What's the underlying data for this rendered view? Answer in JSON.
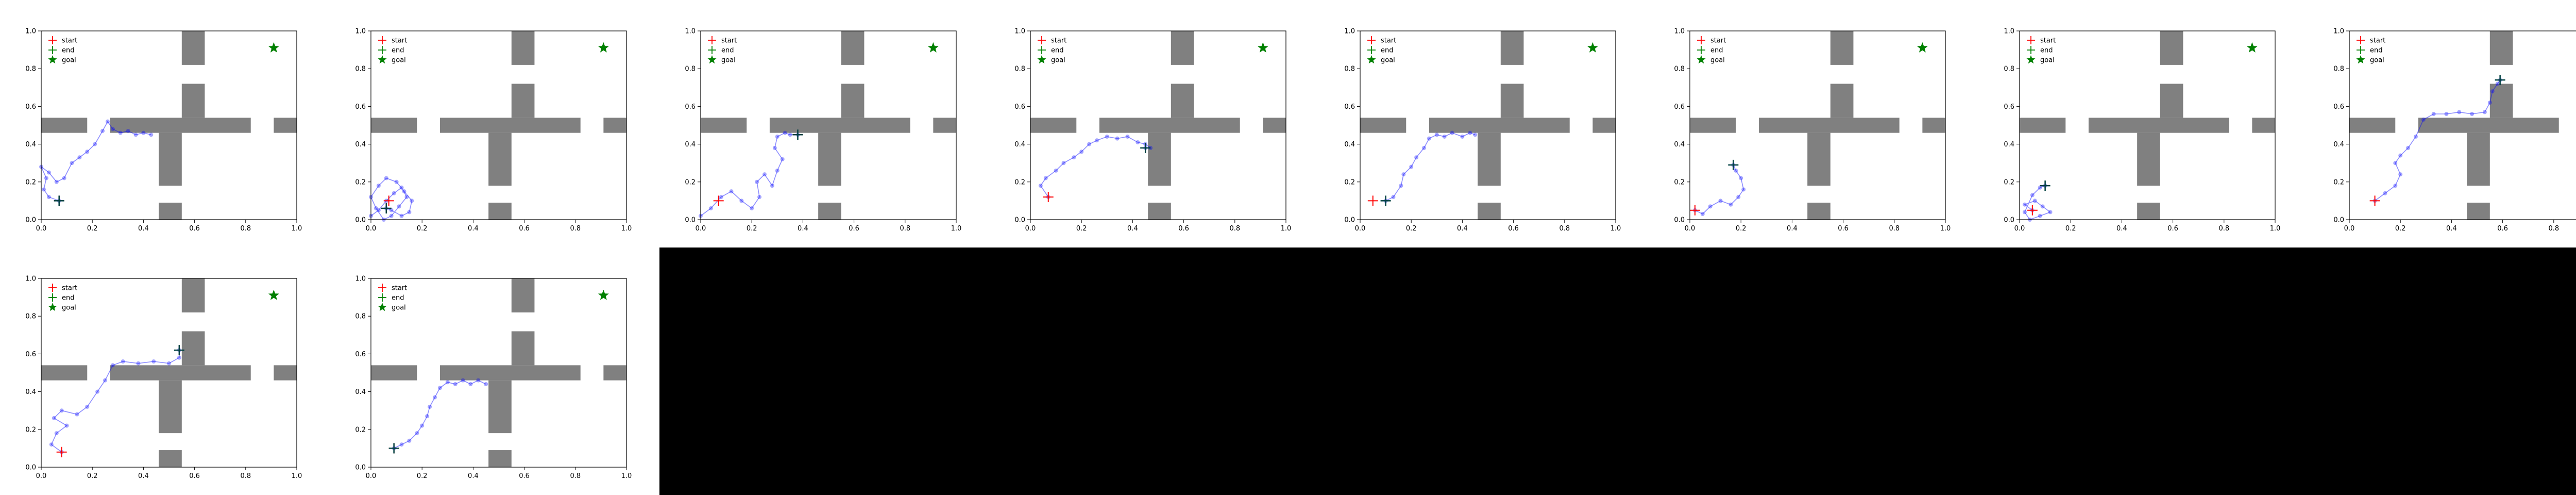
{
  "chart_data": {
    "type": "scatter",
    "description_free": true,
    "xlim": [
      0,
      1
    ],
    "ylim": [
      0,
      1
    ],
    "xticks": [
      "0.0",
      "0.2",
      "0.4",
      "0.6",
      "0.8",
      "1.0"
    ],
    "yticks": [
      "0.0",
      "0.2",
      "0.4",
      "0.6",
      "0.8",
      "1.0"
    ],
    "grid": false,
    "legend_position": "top-left",
    "legend": [
      {
        "key": "start",
        "label": "start",
        "marker": "plus",
        "color": "#ff0000"
      },
      {
        "key": "end",
        "label": "end",
        "marker": "plus",
        "color": "#008000"
      },
      {
        "key": "goal",
        "label": "goal",
        "marker": "star",
        "color": "#008000"
      }
    ],
    "colors": {
      "walls": "#808080",
      "trajectory": "#0000ff",
      "end_marker": "#004040",
      "start_marker": "#ff0000",
      "goal_marker": "#008000"
    },
    "walls": [
      {
        "x0": 0.0,
        "x1": 0.18,
        "y0": 0.46,
        "y1": 0.54
      },
      {
        "x0": 0.27,
        "x1": 0.82,
        "y0": 0.46,
        "y1": 0.54
      },
      {
        "x0": 0.91,
        "x1": 1.0,
        "y0": 0.46,
        "y1": 0.54
      },
      {
        "x0": 0.55,
        "x1": 0.64,
        "y0": 0.82,
        "y1": 1.0
      },
      {
        "x0": 0.55,
        "x1": 0.64,
        "y0": 0.54,
        "y1": 0.72
      },
      {
        "x0": 0.46,
        "x1": 0.55,
        "y0": 0.18,
        "y1": 0.46
      },
      {
        "x0": 0.46,
        "x1": 0.55,
        "y0": 0.0,
        "y1": 0.09
      }
    ],
    "goal": [
      0.91,
      0.91
    ],
    "panels": [
      {
        "start": [
          0.07,
          0.1
        ],
        "end": [
          0.07,
          0.1
        ],
        "trajectory": [
          [
            0.07,
            0.1
          ],
          [
            0.03,
            0.12
          ],
          [
            0.01,
            0.16
          ],
          [
            0.02,
            0.22
          ],
          [
            0.0,
            0.28
          ],
          [
            0.03,
            0.25
          ],
          [
            0.06,
            0.2
          ],
          [
            0.09,
            0.22
          ],
          [
            0.12,
            0.3
          ],
          [
            0.15,
            0.33
          ],
          [
            0.18,
            0.36
          ],
          [
            0.21,
            0.4
          ],
          [
            0.24,
            0.47
          ],
          [
            0.26,
            0.52
          ],
          [
            0.28,
            0.48
          ],
          [
            0.31,
            0.46
          ],
          [
            0.34,
            0.47
          ],
          [
            0.37,
            0.45
          ],
          [
            0.4,
            0.46
          ],
          [
            0.43,
            0.45
          ]
        ]
      },
      {
        "start": [
          0.07,
          0.1
        ],
        "end": [
          0.06,
          0.06
        ],
        "trajectory": [
          [
            0.0,
            0.02
          ],
          [
            0.03,
            0.05
          ],
          [
            0.06,
            0.1
          ],
          [
            0.09,
            0.14
          ],
          [
            0.12,
            0.17
          ],
          [
            0.14,
            0.12
          ],
          [
            0.11,
            0.07
          ],
          [
            0.08,
            0.02
          ],
          [
            0.05,
            0.0
          ],
          [
            0.02,
            0.06
          ],
          [
            0.0,
            0.12
          ],
          [
            0.03,
            0.18
          ],
          [
            0.06,
            0.22
          ],
          [
            0.1,
            0.2
          ],
          [
            0.13,
            0.15
          ],
          [
            0.16,
            0.1
          ],
          [
            0.15,
            0.04
          ],
          [
            0.12,
            0.02
          ],
          [
            0.08,
            0.05
          ],
          [
            0.06,
            0.06
          ]
        ]
      },
      {
        "start": [
          0.07,
          0.1
        ],
        "end": [
          0.38,
          0.45
        ],
        "trajectory": [
          [
            0.0,
            0.02
          ],
          [
            0.04,
            0.06
          ],
          [
            0.08,
            0.12
          ],
          [
            0.12,
            0.15
          ],
          [
            0.16,
            0.1
          ],
          [
            0.2,
            0.06
          ],
          [
            0.23,
            0.12
          ],
          [
            0.22,
            0.2
          ],
          [
            0.25,
            0.24
          ],
          [
            0.28,
            0.18
          ],
          [
            0.3,
            0.26
          ],
          [
            0.32,
            0.32
          ],
          [
            0.29,
            0.38
          ],
          [
            0.3,
            0.44
          ],
          [
            0.33,
            0.46
          ],
          [
            0.35,
            0.45
          ],
          [
            0.38,
            0.45
          ]
        ]
      },
      {
        "start": [
          0.07,
          0.12
        ],
        "end": [
          0.45,
          0.38
        ],
        "trajectory": [
          [
            0.07,
            0.12
          ],
          [
            0.04,
            0.18
          ],
          [
            0.06,
            0.22
          ],
          [
            0.1,
            0.26
          ],
          [
            0.13,
            0.3
          ],
          [
            0.17,
            0.33
          ],
          [
            0.2,
            0.36
          ],
          [
            0.23,
            0.4
          ],
          [
            0.26,
            0.42
          ],
          [
            0.3,
            0.44
          ],
          [
            0.34,
            0.43
          ],
          [
            0.38,
            0.44
          ],
          [
            0.42,
            0.41
          ],
          [
            0.45,
            0.4
          ],
          [
            0.47,
            0.38
          ],
          [
            0.45,
            0.38
          ]
        ]
      },
      {
        "start": [
          0.05,
          0.1
        ],
        "end": [
          0.1,
          0.1
        ],
        "trajectory": [
          [
            0.1,
            0.1
          ],
          [
            0.13,
            0.12
          ],
          [
            0.16,
            0.18
          ],
          [
            0.17,
            0.24
          ],
          [
            0.2,
            0.28
          ],
          [
            0.22,
            0.33
          ],
          [
            0.25,
            0.38
          ],
          [
            0.27,
            0.43
          ],
          [
            0.3,
            0.45
          ],
          [
            0.33,
            0.44
          ],
          [
            0.36,
            0.46
          ],
          [
            0.4,
            0.44
          ],
          [
            0.43,
            0.46
          ],
          [
            0.45,
            0.45
          ]
        ]
      },
      {
        "start": [
          0.02,
          0.05
        ],
        "end": [
          0.17,
          0.29
        ],
        "trajectory": [
          [
            0.02,
            0.05
          ],
          [
            0.05,
            0.03
          ],
          [
            0.08,
            0.07
          ],
          [
            0.12,
            0.1
          ],
          [
            0.16,
            0.08
          ],
          [
            0.19,
            0.12
          ],
          [
            0.21,
            0.16
          ],
          [
            0.2,
            0.22
          ],
          [
            0.18,
            0.26
          ],
          [
            0.17,
            0.29
          ]
        ]
      },
      {
        "start": [
          0.05,
          0.05
        ],
        "end": [
          0.1,
          0.18
        ],
        "trajectory": [
          [
            0.05,
            0.05
          ],
          [
            0.02,
            0.08
          ],
          [
            0.06,
            0.1
          ],
          [
            0.09,
            0.07
          ],
          [
            0.12,
            0.04
          ],
          [
            0.08,
            0.02
          ],
          [
            0.04,
            0.0
          ],
          [
            0.02,
            0.04
          ],
          [
            0.05,
            0.13
          ],
          [
            0.08,
            0.17
          ],
          [
            0.1,
            0.18
          ]
        ]
      },
      {
        "start": [
          0.1,
          0.1
        ],
        "end": [
          0.59,
          0.74
        ],
        "trajectory": [
          [
            0.1,
            0.1
          ],
          [
            0.14,
            0.14
          ],
          [
            0.18,
            0.18
          ],
          [
            0.2,
            0.24
          ],
          [
            0.18,
            0.3
          ],
          [
            0.2,
            0.34
          ],
          [
            0.23,
            0.38
          ],
          [
            0.26,
            0.44
          ],
          [
            0.29,
            0.53
          ],
          [
            0.33,
            0.56
          ],
          [
            0.38,
            0.56
          ],
          [
            0.43,
            0.57
          ],
          [
            0.48,
            0.56
          ],
          [
            0.53,
            0.57
          ],
          [
            0.55,
            0.62
          ],
          [
            0.56,
            0.68
          ],
          [
            0.58,
            0.72
          ],
          [
            0.59,
            0.74
          ]
        ]
      },
      {
        "start": [
          0.08,
          0.08
        ],
        "end": [
          0.54,
          0.62
        ],
        "trajectory": [
          [
            0.08,
            0.08
          ],
          [
            0.04,
            0.12
          ],
          [
            0.06,
            0.18
          ],
          [
            0.1,
            0.22
          ],
          [
            0.05,
            0.26
          ],
          [
            0.08,
            0.3
          ],
          [
            0.14,
            0.28
          ],
          [
            0.18,
            0.32
          ],
          [
            0.22,
            0.4
          ],
          [
            0.25,
            0.46
          ],
          [
            0.28,
            0.54
          ],
          [
            0.32,
            0.56
          ],
          [
            0.38,
            0.55
          ],
          [
            0.44,
            0.56
          ],
          [
            0.5,
            0.55
          ],
          [
            0.54,
            0.58
          ],
          [
            0.54,
            0.62
          ]
        ]
      },
      {
        "start": [
          0.09,
          0.1
        ],
        "end": [
          0.09,
          0.1
        ],
        "trajectory": [
          [
            0.09,
            0.1
          ],
          [
            0.12,
            0.12
          ],
          [
            0.15,
            0.14
          ],
          [
            0.18,
            0.18
          ],
          [
            0.2,
            0.22
          ],
          [
            0.22,
            0.27
          ],
          [
            0.23,
            0.32
          ],
          [
            0.25,
            0.37
          ],
          [
            0.27,
            0.42
          ],
          [
            0.3,
            0.45
          ],
          [
            0.33,
            0.44
          ],
          [
            0.36,
            0.46
          ],
          [
            0.39,
            0.44
          ],
          [
            0.42,
            0.46
          ],
          [
            0.45,
            0.44
          ]
        ]
      }
    ]
  }
}
